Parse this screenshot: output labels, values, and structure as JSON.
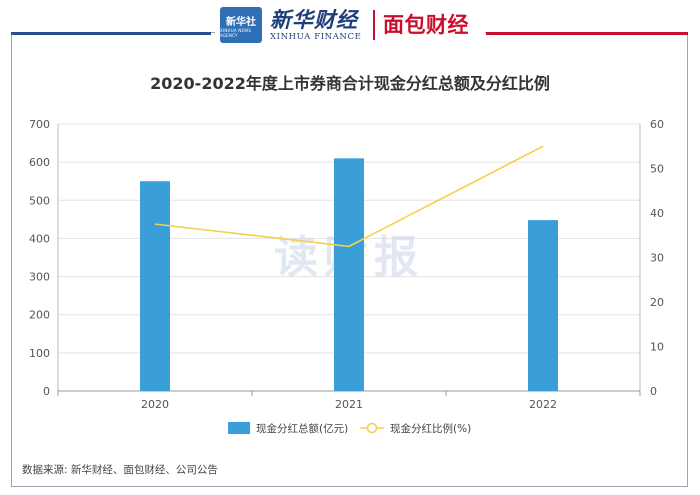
{
  "header": {
    "logo_small_cn": "新华社",
    "logo_small_en": "XINHUA NEWS AGENCY",
    "brand_cn": "新华财经",
    "brand_en": "XINHUA FINANCE",
    "brand2": "面包财经",
    "colors": {
      "blue": "#1f3f7a",
      "red": "#c8102e"
    }
  },
  "watermark": "读财报",
  "source_note": "数据来源: 新华财经、面包财经、公司公告",
  "chart_data": {
    "type": "bar",
    "title": "2020-2022年度上市券商合计现金分红总额及分红比例",
    "categories": [
      "2020",
      "2021",
      "2022"
    ],
    "series": [
      {
        "name": "现金分红总额(亿元)",
        "type": "bar",
        "axis": "left",
        "values": [
          550,
          610,
          448
        ],
        "color": "#3a9fd8"
      },
      {
        "name": "现金分红比例(%)",
        "type": "line",
        "axis": "right",
        "values": [
          37.5,
          32.5,
          55
        ],
        "color": "#f5d04c"
      }
    ],
    "y_left": {
      "min": 0,
      "max": 700,
      "ticks": [
        0,
        100,
        200,
        300,
        400,
        500,
        600,
        700
      ]
    },
    "y_right": {
      "min": 0,
      "max": 60,
      "ticks": [
        0,
        10,
        20,
        30,
        40,
        50,
        60
      ]
    },
    "grid": true,
    "legend_position": "bottom"
  }
}
